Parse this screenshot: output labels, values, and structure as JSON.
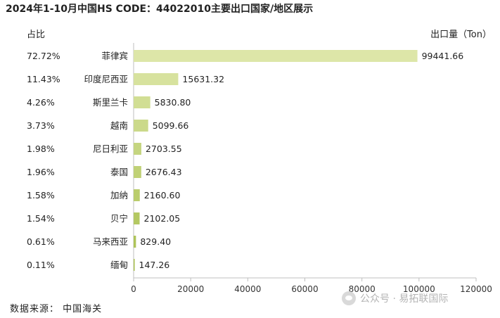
{
  "title": "2024年1-10月中国HS CODE：44022010主要出口国家/地区展示",
  "share_header": "占比",
  "unit_label": "出口量（Ton）",
  "source": "数据来源： 中国海关",
  "watermark": {
    "text": "公众号 · 易拓联国际",
    "icon": "wechat-icon"
  },
  "colors": {
    "bar_dark": "#a8c04e",
    "bar_light": "#dde6a8",
    "axis": "#bfbfbf"
  },
  "chart_data": {
    "type": "bar",
    "orientation": "horizontal",
    "categories": [
      "菲律宾",
      "印度尼西亚",
      "斯里兰卡",
      "越南",
      "尼日利亚",
      "泰国",
      "加纳",
      "贝宁",
      "马来西亚",
      "缅甸"
    ],
    "values": [
      99441.66,
      15631.32,
      5830.8,
      5099.66,
      2703.55,
      2676.43,
      2160.6,
      2102.05,
      829.4,
      147.26
    ],
    "value_labels": [
      "99441.66",
      "15631.32",
      "5830.80",
      "5099.66",
      "2703.55",
      "2676.43",
      "2160.60",
      "2102.05",
      "829.40",
      "147.26"
    ],
    "shares": [
      "72.72%",
      "11.43%",
      "4.26%",
      "3.73%",
      "1.98%",
      "1.96%",
      "1.58%",
      "1.54%",
      "0.61%",
      "0.11%"
    ],
    "xlim": [
      0,
      120000
    ],
    "xticks": [
      0,
      20000,
      40000,
      60000,
      80000,
      100000,
      120000
    ],
    "xtick_labels": [
      "0",
      "20000",
      "40000",
      "60000",
      "80000",
      "100000",
      "120000"
    ],
    "grid": false,
    "legend": "none"
  }
}
